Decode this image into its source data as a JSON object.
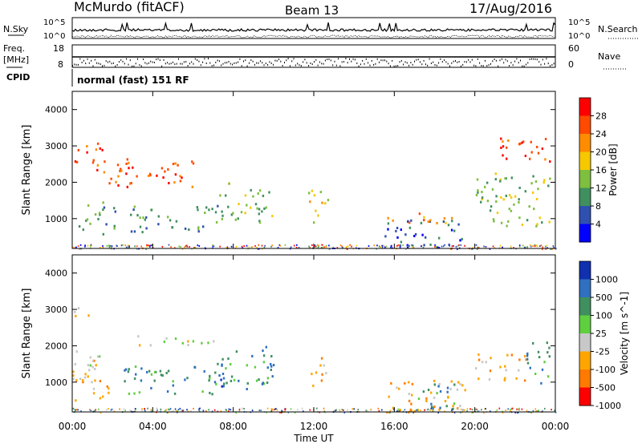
{
  "header": {
    "station": "McMurdo (fitACF)",
    "beam": "Beam 13",
    "date": "17/Aug/2016"
  },
  "param_strip": {
    "nsky_label": "N.Sky",
    "nsearch_label": "N.Search",
    "nsky_ticks": [
      "10^5",
      "10^0"
    ],
    "nsearch_ticks": [
      "10^5",
      "10^0"
    ],
    "freq_label_1": "Freq.",
    "freq_label_2": "[MHz]",
    "freq_ticks": [
      "18",
      "8"
    ],
    "nave_label": "Nave",
    "nave_ticks": [
      "60",
      "0"
    ],
    "cpid_label": "CPID",
    "cpid_text": "normal (fast) 151 RF"
  },
  "chart_data": [
    {
      "type": "heatmap",
      "name": "power",
      "ylabel": "Slant Range [km]",
      "ylim": [
        180,
        4500
      ],
      "yticks": [
        1000,
        2000,
        3000,
        4000
      ],
      "colorbar_label": "Power [dB]",
      "colorbar_ticks": [
        "28",
        "24",
        "20",
        "16",
        "12",
        "8",
        "4"
      ],
      "colorbar_colors": [
        "#ff0000",
        "#ff4a00",
        "#ff8c00",
        "#f5c800",
        "#7fbf3f",
        "#3f8f5f",
        "#3050b0",
        "#0000ff"
      ],
      "regions": [
        {
          "t0": 0.3,
          "t1": 2.2,
          "r0": 600,
          "r1": 1500,
          "level": 5
        },
        {
          "t0": 2.8,
          "t1": 7.2,
          "r0": 650,
          "r1": 1400,
          "level": 5
        },
        {
          "t0": 7.2,
          "t1": 10.0,
          "r0": 900,
          "r1": 2000,
          "level": 4
        },
        {
          "t0": 1.0,
          "t1": 6.0,
          "r0": 1900,
          "r1": 2700,
          "level": 1
        },
        {
          "t0": 0.0,
          "t1": 1.5,
          "r0": 2500,
          "r1": 3100,
          "level": 1
        },
        {
          "t0": 11.7,
          "t1": 12.7,
          "r0": 800,
          "r1": 1800,
          "level": 3
        },
        {
          "t0": 15.5,
          "t1": 19.5,
          "r0": 200,
          "r1": 1000,
          "level": 6
        },
        {
          "t0": 15.5,
          "t1": 19.0,
          "r0": 900,
          "r1": 1200,
          "level": 2
        },
        {
          "t0": 20.0,
          "t1": 23.7,
          "r0": 800,
          "r1": 2300,
          "level": 4
        },
        {
          "t0": 21.0,
          "t1": 23.8,
          "r0": 2600,
          "r1": 3300,
          "level": 1
        }
      ]
    },
    {
      "type": "heatmap",
      "name": "velocity",
      "ylabel": "Slant Range [km]",
      "ylim": [
        180,
        4500
      ],
      "yticks": [
        1000,
        2000,
        3000,
        4000
      ],
      "colorbar_label": "Velocity [m s^-1]",
      "colorbar_ticks": [
        "1000",
        "500",
        "100",
        "25",
        "-25",
        "-100",
        "-500",
        "-1000"
      ],
      "colorbar_colors": [
        "#1030b0",
        "#3070c0",
        "#3f8f5f",
        "#5fcf3f",
        "#c8c8c8",
        "#ffa500",
        "#ff7a00",
        "#ff0000"
      ],
      "regions": [
        {
          "t0": 0.0,
          "t1": 1.8,
          "r0": 500,
          "r1": 1900,
          "level": 5
        },
        {
          "t0": 0.5,
          "t1": 1.5,
          "r0": 1300,
          "r1": 1800,
          "level": 3
        },
        {
          "t0": 3.0,
          "t1": 7.0,
          "r0": 2000,
          "r1": 2300,
          "level": 4
        },
        {
          "t0": 2.5,
          "t1": 7.2,
          "r0": 700,
          "r1": 1500,
          "level": 2
        },
        {
          "t0": 7.0,
          "t1": 10.0,
          "r0": 800,
          "r1": 2000,
          "level": 2
        },
        {
          "t0": 7.0,
          "t1": 8.0,
          "r0": 900,
          "r1": 1300,
          "level": 0
        },
        {
          "t0": 11.7,
          "t1": 12.6,
          "r0": 900,
          "r1": 1800,
          "level": 5
        },
        {
          "t0": 15.5,
          "t1": 19.5,
          "r0": 200,
          "r1": 1100,
          "level": 5
        },
        {
          "t0": 17.0,
          "t1": 19.0,
          "r0": 200,
          "r1": 1000,
          "level": 2
        },
        {
          "t0": 20.0,
          "t1": 22.5,
          "r0": 1000,
          "r1": 1800,
          "level": 5
        },
        {
          "t0": 22.5,
          "t1": 23.7,
          "r0": 900,
          "r1": 2200,
          "level": 2
        },
        {
          "t0": 0.0,
          "t1": 0.8,
          "r0": 2800,
          "r1": 3200,
          "level": 4
        }
      ]
    }
  ],
  "x_axis": {
    "label": "Time UT",
    "ticks": [
      "00:00",
      "04:00",
      "08:00",
      "12:00",
      "16:00",
      "20:00",
      "00:00"
    ],
    "tick_hours": [
      0,
      4,
      8,
      12,
      16,
      20,
      24
    ]
  }
}
